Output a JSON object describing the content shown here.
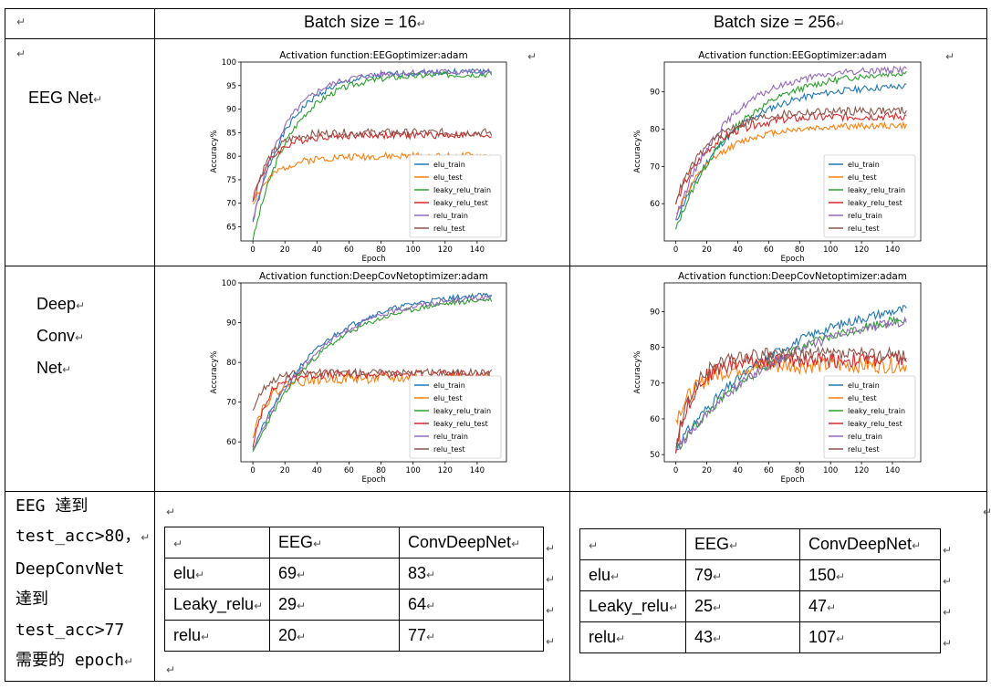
{
  "header": {
    "col1": "Batch size = 16",
    "col2": "Batch size = 256"
  },
  "rows": {
    "eeg_label": "EEG Net",
    "deep_label_lines": [
      "Deep",
      "Conv",
      "Net"
    ],
    "summary_label_lines": [
      "EEG 達到",
      "test_acc>80，",
      "DeepConvNet",
      "達到",
      "test_acc>77",
      "需要的 epoch"
    ]
  },
  "mark": "↵",
  "tables": {
    "headers": [
      "",
      "EEG",
      "ConvDeepNet"
    ],
    "batch16": [
      {
        "name": "elu",
        "eeg": "69",
        "deep": "83"
      },
      {
        "name": "Leaky_relu",
        "eeg": "29",
        "deep": "64"
      },
      {
        "name": "relu",
        "eeg": "20",
        "deep": "77"
      }
    ],
    "batch256": [
      {
        "name": "elu",
        "eeg": "79",
        "deep": "150"
      },
      {
        "name": "Leaky_relu",
        "eeg": "25",
        "deep": "47"
      },
      {
        "name": "relu",
        "eeg": "43",
        "deep": "107"
      }
    ]
  },
  "chart_data": [
    {
      "type": "line",
      "title": "Activation function:EEGoptimizer:adam",
      "xlabel": "Epoch",
      "ylabel": "Accuracy%",
      "xlim": [
        0,
        150
      ],
      "ylim": [
        62,
        100
      ],
      "xticks": [
        0,
        20,
        40,
        60,
        80,
        100,
        120,
        140
      ],
      "yticks": [
        65,
        70,
        75,
        80,
        85,
        90,
        95,
        100
      ],
      "legend_position": "lower-right",
      "series": [
        {
          "name": "elu_train",
          "color": "#1f77b4",
          "final": 98,
          "start": 66,
          "tau": 22,
          "noise": 0.6,
          "seed": 1
        },
        {
          "name": "elu_test",
          "color": "#ff7f0e",
          "final": 80,
          "start": 70,
          "tau": 14,
          "noise": 0.7,
          "seed": 2
        },
        {
          "name": "leaky_relu_train",
          "color": "#2ca02c",
          "final": 97.5,
          "start": 62,
          "tau": 23,
          "noise": 0.6,
          "seed": 3
        },
        {
          "name": "leaky_relu_test",
          "color": "#d62728",
          "final": 84.5,
          "start": 71,
          "tau": 12,
          "noise": 0.7,
          "seed": 4
        },
        {
          "name": "relu_train",
          "color": "#9467bd",
          "final": 98,
          "start": 66,
          "tau": 20,
          "noise": 0.6,
          "seed": 5
        },
        {
          "name": "relu_test",
          "color": "#8c564b",
          "final": 85,
          "start": 70,
          "tau": 10,
          "noise": 0.8,
          "seed": 6
        }
      ]
    },
    {
      "type": "line",
      "title": "Activation function:EEGoptimizer:adam",
      "xlabel": "Epoch",
      "ylabel": "Accuracy%",
      "xlim": [
        0,
        150
      ],
      "ylim": [
        50,
        98
      ],
      "xticks": [
        0,
        20,
        40,
        60,
        80,
        100,
        120,
        140
      ],
      "yticks": [
        60,
        70,
        80,
        90
      ],
      "legend_position": "lower-right",
      "series": [
        {
          "name": "elu_train",
          "color": "#1f77b4",
          "final": 92,
          "start": 55,
          "tau": 35,
          "noise": 0.8,
          "seed": 11
        },
        {
          "name": "elu_test",
          "color": "#ff7f0e",
          "final": 81,
          "start": 57,
          "tau": 25,
          "noise": 0.8,
          "seed": 12
        },
        {
          "name": "leaky_relu_train",
          "color": "#2ca02c",
          "final": 96,
          "start": 53,
          "tau": 38,
          "noise": 0.8,
          "seed": 13
        },
        {
          "name": "leaky_relu_test",
          "color": "#d62728",
          "final": 83.5,
          "start": 60,
          "tau": 22,
          "noise": 1.0,
          "seed": 14
        },
        {
          "name": "relu_train",
          "color": "#9467bd",
          "final": 96.5,
          "start": 56,
          "tau": 32,
          "noise": 0.8,
          "seed": 15
        },
        {
          "name": "relu_test",
          "color": "#8c564b",
          "final": 85,
          "start": 61,
          "tau": 22,
          "noise": 1.0,
          "seed": 16
        }
      ]
    },
    {
      "type": "line",
      "title": "Activation function:DeepCovNetoptimizer:adam",
      "xlabel": "Epoch",
      "ylabel": "Accuracy%",
      "xlim": [
        0,
        150
      ],
      "ylim": [
        55,
        100
      ],
      "xticks": [
        0,
        20,
        40,
        60,
        80,
        100,
        120,
        140
      ],
      "yticks": [
        60,
        70,
        80,
        90,
        100
      ],
      "legend_position": "lower-right",
      "series": [
        {
          "name": "elu_train",
          "color": "#1f77b4",
          "final": 98,
          "start": 58,
          "tau": 40,
          "noise": 0.6,
          "seed": 21
        },
        {
          "name": "elu_test",
          "color": "#ff7f0e",
          "final": 76,
          "start": 62,
          "tau": 10,
          "noise": 1.2,
          "seed": 22
        },
        {
          "name": "leaky_relu_train",
          "color": "#2ca02c",
          "final": 97,
          "start": 57,
          "tau": 42,
          "noise": 0.6,
          "seed": 23
        },
        {
          "name": "leaky_relu_test",
          "color": "#d62728",
          "final": 77,
          "start": 58,
          "tau": 8,
          "noise": 1.0,
          "seed": 24
        },
        {
          "name": "relu_train",
          "color": "#9467bd",
          "final": 97.5,
          "start": 58,
          "tau": 41,
          "noise": 0.6,
          "seed": 25
        },
        {
          "name": "relu_test",
          "color": "#8c564b",
          "final": 77.5,
          "start": 68,
          "tau": 8,
          "noise": 0.8,
          "seed": 26
        }
      ]
    },
    {
      "type": "line",
      "title": "Activation function:DeepCovNetoptimizer:adam",
      "xlabel": "Epoch",
      "ylabel": "Accuracy%",
      "xlim": [
        0,
        150
      ],
      "ylim": [
        48,
        98
      ],
      "xticks": [
        0,
        20,
        40,
        60,
        80,
        100,
        120,
        140
      ],
      "yticks": [
        50,
        60,
        70,
        80,
        90
      ],
      "legend_position": "lower-right",
      "series": [
        {
          "name": "elu_train",
          "color": "#1f77b4",
          "final": 96,
          "start": 52,
          "tau": 70,
          "noise": 1.2,
          "seed": 31
        },
        {
          "name": "elu_test",
          "color": "#ff7f0e",
          "final": 75,
          "start": 60,
          "tau": 15,
          "noise": 2.0,
          "seed": 32
        },
        {
          "name": "leaky_relu_train",
          "color": "#2ca02c",
          "final": 93,
          "start": 51,
          "tau": 70,
          "noise": 1.2,
          "seed": 33
        },
        {
          "name": "leaky_relu_test",
          "color": "#d62728",
          "final": 76.5,
          "start": 52,
          "tau": 12,
          "noise": 2.0,
          "seed": 34
        },
        {
          "name": "relu_train",
          "color": "#9467bd",
          "final": 92,
          "start": 51,
          "tau": 68,
          "noise": 1.2,
          "seed": 35
        },
        {
          "name": "relu_test",
          "color": "#8c564b",
          "final": 78,
          "start": 52,
          "tau": 12,
          "noise": 1.8,
          "seed": 36
        }
      ]
    }
  ]
}
